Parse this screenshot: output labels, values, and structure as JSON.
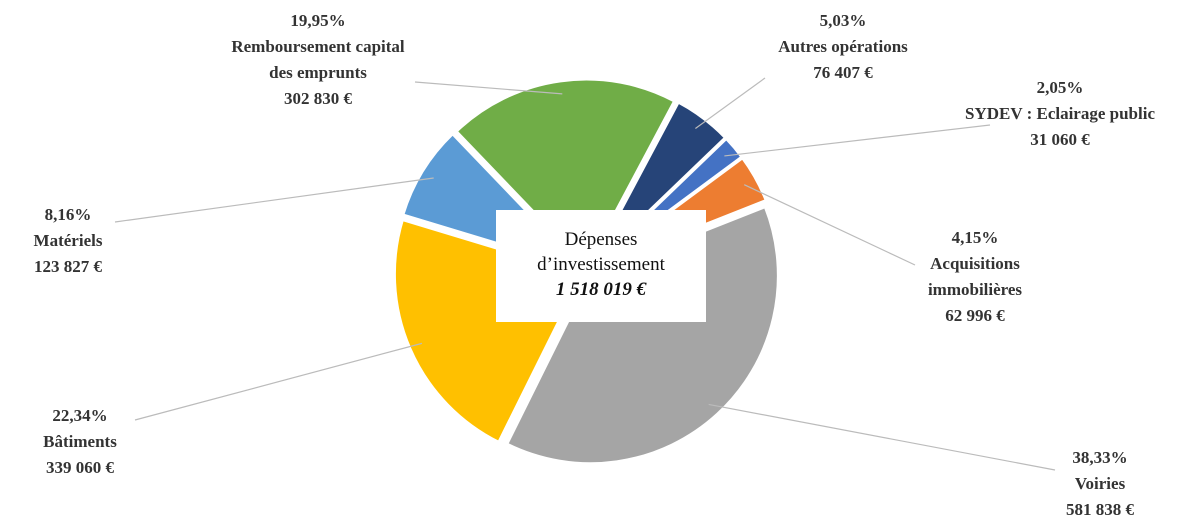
{
  "chart_data": {
    "type": "pie",
    "center_label": "Dépenses d’investissement",
    "center_value_label": "1 518 019 €",
    "categories": [
      "Remboursement capital des emprunts",
      "Autres opérations",
      "SYDEV : Eclairage public",
      "Acquisitions immobilières",
      "Voiries",
      "Bâtiments",
      "Matériels"
    ],
    "values": [
      19.95,
      5.03,
      2.05,
      4.15,
      38.33,
      22.34,
      8.16
    ],
    "value_labels": [
      "19,95%",
      "5,03%",
      "2,05%",
      "4,15%",
      "38,33%",
      "22,34%",
      "8,16%"
    ],
    "amount_labels": [
      "302 830 €",
      "76 407 €",
      "31 060 €",
      "62 996 €",
      "581 838 €",
      "339 060 €",
      "123 827 €"
    ],
    "colors": [
      "#70ad47",
      "#264478",
      "#4472c4",
      "#ed7d31",
      "#a5a5a5",
      "#ffc000",
      "#5b9bd5"
    ]
  }
}
